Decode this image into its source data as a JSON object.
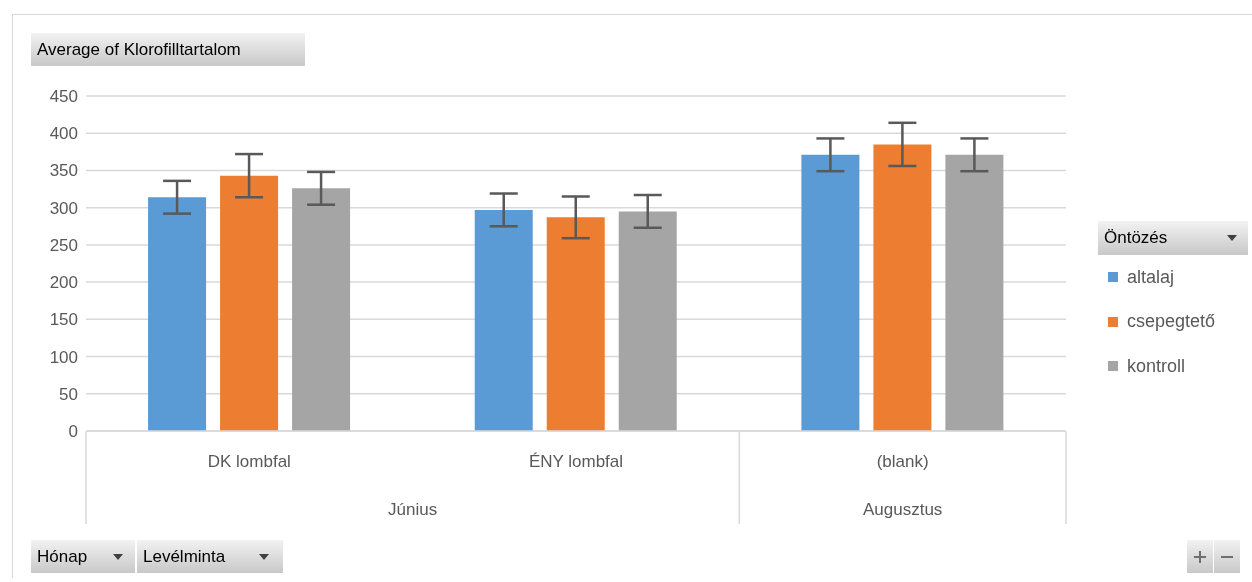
{
  "chart_data": {
    "type": "bar",
    "title": "Average of Klorofilltartalom",
    "legend_title": "Öntözés",
    "categories": [
      "DK lombfal",
      "ÉNY lombfal",
      "(blank)"
    ],
    "series": [
      {
        "name": "altalaj",
        "color": "#5b9bd5",
        "values": [
          314,
          297,
          371
        ],
        "errors": [
          22,
          22,
          22
        ]
      },
      {
        "name": "csepegtető",
        "color": "#ed7d31",
        "values": [
          343,
          287,
          385
        ],
        "errors": [
          29,
          28,
          29
        ]
      },
      {
        "name": "kontroll",
        "color": "#a5a5a5",
        "values": [
          326,
          295,
          371
        ],
        "errors": [
          22,
          22,
          22
        ]
      }
    ],
    "ylim": [
      0,
      450
    ],
    "yticks": [
      0,
      50,
      100,
      150,
      200,
      250,
      300,
      350,
      400,
      450
    ],
    "grid": "y",
    "legend": "right",
    "annotations": [
      "Június",
      "Augusztus",
      "Hónap",
      "Levélminta"
    ]
  }
}
